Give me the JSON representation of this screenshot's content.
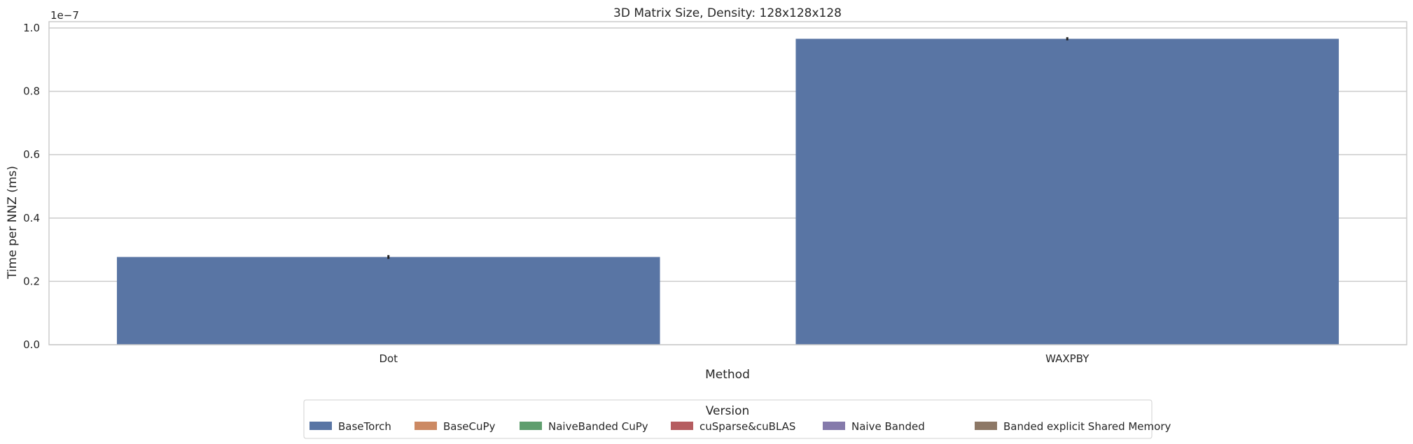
{
  "chart_data": {
    "type": "bar",
    "title": "3D Matrix Size, Density: 128x128x128",
    "xlabel": "Method",
    "ylabel": "Time per NNZ (ms)",
    "scale_label": "1e−7",
    "categories": [
      "Dot",
      "WAXPBY"
    ],
    "ylim": [
      0,
      1.02
    ],
    "yticks": [
      "0.0",
      "0.2",
      "0.4",
      "0.6",
      "0.8",
      "1.0"
    ],
    "ytick_values": [
      0.0,
      0.2,
      0.4,
      0.6,
      0.8,
      1.0
    ],
    "grid": true,
    "series": [
      {
        "name": "BaseTorch",
        "color": "#5975a4",
        "values": [
          0.277,
          0.966
        ],
        "error": [
          0.012,
          0.01
        ]
      },
      {
        "name": "BaseCuPy",
        "color": "#cc8963",
        "values": [
          null,
          null
        ]
      },
      {
        "name": "NaiveBanded CuPy",
        "color": "#5f9e6e",
        "values": [
          null,
          null
        ]
      },
      {
        "name": "cuSparse&cuBLAS",
        "color": "#b55d60",
        "values": [
          null,
          null
        ]
      },
      {
        "name": "Naive Banded",
        "color": "#857aab",
        "values": [
          null,
          null
        ]
      },
      {
        "name": "Banded explicit Shared Memory",
        "color": "#8d7866",
        "values": [
          null,
          null
        ]
      }
    ],
    "legend": {
      "title": "Version",
      "placement": "bottom-center"
    }
  }
}
